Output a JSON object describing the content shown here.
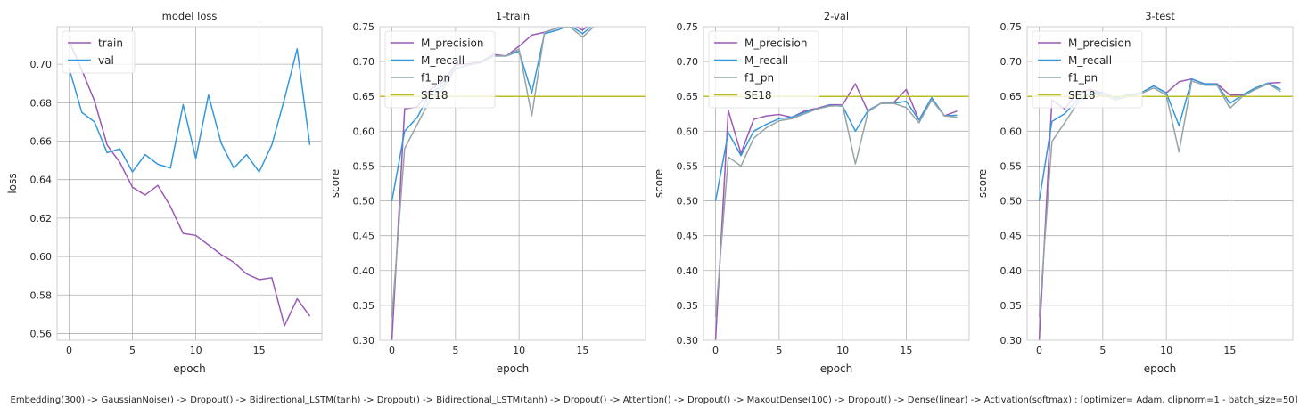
{
  "caption": "Embedding(300) -> GaussianNoise() -> Dropout() -> Bidirectional_LSTM(tanh) -> Dropout() -> Bidirectional_LSTM(tanh) -> Dropout() -> Attention() -> Dropout() -> MaxoutDense(100) -> Dropout() -> Dense(linear) -> Activation(softmax) : [optimizer= Adam, clipnorm=1 - batch_size=50]",
  "colors": {
    "purple": "#9b59b6",
    "blue": "#3498db",
    "gray": "#95a5a6",
    "olive": "#bcbd22",
    "grid": "#b0b0b0",
    "spine": "#cfcfcf"
  },
  "chart_data": [
    {
      "type": "line",
      "title": "model loss",
      "xlabel": "epoch",
      "ylabel": "loss",
      "xlim": [
        -0.95,
        19.95
      ],
      "ylim": [
        0.5565,
        0.7195
      ],
      "xticks": [
        0,
        5,
        10,
        15
      ],
      "yticks": [
        0.56,
        0.58,
        0.6,
        0.62,
        0.64,
        0.66,
        0.68,
        0.7
      ],
      "tick_format": "fixed2",
      "grid": true,
      "legend_position": "upper-left",
      "series": [
        {
          "name": "train",
          "color": "#9b59b6",
          "x": [
            0,
            1,
            2,
            3,
            4,
            5,
            6,
            7,
            8,
            9,
            10,
            11,
            12,
            13,
            14,
            15,
            16,
            17,
            18,
            19
          ],
          "values": [
            0.712,
            0.697,
            0.681,
            0.658,
            0.649,
            0.636,
            0.632,
            0.637,
            0.626,
            0.612,
            0.611,
            0.606,
            0.601,
            0.597,
            0.591,
            0.588,
            0.589,
            0.564,
            0.578,
            0.569
          ]
        },
        {
          "name": "val",
          "color": "#3498db",
          "x": [
            0,
            1,
            2,
            3,
            4,
            5,
            6,
            7,
            8,
            9,
            10,
            11,
            12,
            13,
            14,
            15,
            16,
            17,
            18,
            19
          ],
          "values": [
            0.698,
            0.675,
            0.67,
            0.654,
            0.656,
            0.644,
            0.653,
            0.648,
            0.646,
            0.679,
            0.651,
            0.684,
            0.659,
            0.646,
            0.653,
            0.644,
            0.658,
            0.682,
            0.708,
            0.658
          ]
        }
      ]
    },
    {
      "type": "line",
      "title": "1-train",
      "xlabel": "epoch",
      "ylabel": "score",
      "xlim": [
        -0.95,
        19.95
      ],
      "ylim": [
        0.3,
        0.75
      ],
      "xticks": [
        0,
        5,
        10,
        15
      ],
      "yticks": [
        0.3,
        0.35,
        0.4,
        0.45,
        0.5,
        0.55,
        0.6,
        0.65,
        0.7,
        0.75
      ],
      "tick_format": "fixed2",
      "grid": true,
      "legend_position": "upper-left",
      "series": [
        {
          "name": "M_precision",
          "color": "#9b59b6",
          "x": [
            0,
            1,
            2,
            3,
            4,
            5,
            6,
            7,
            8,
            9,
            10,
            11,
            12,
            13,
            14,
            15,
            16,
            17,
            18,
            19
          ],
          "values": [
            0.3,
            0.632,
            0.635,
            0.66,
            0.67,
            0.695,
            0.697,
            0.7,
            0.71,
            0.708,
            0.722,
            0.738,
            0.742,
            0.748,
            0.755,
            0.745,
            0.76,
            0.762,
            0.765,
            0.77
          ]
        },
        {
          "name": "M_recall",
          "color": "#3498db",
          "x": [
            0,
            1,
            2,
            3,
            4,
            5,
            6,
            7,
            8,
            9,
            10,
            11,
            12,
            13,
            14,
            15,
            16,
            17,
            18,
            19
          ],
          "values": [
            0.5,
            0.6,
            0.62,
            0.655,
            0.665,
            0.69,
            0.695,
            0.698,
            0.708,
            0.708,
            0.715,
            0.655,
            0.74,
            0.745,
            0.752,
            0.74,
            0.755,
            0.758,
            0.762,
            0.77
          ]
        },
        {
          "name": "f1_pn",
          "color": "#95a5a6",
          "x": [
            0,
            1,
            2,
            3,
            4,
            5,
            6,
            7,
            8,
            9,
            10,
            11,
            12,
            13,
            14,
            15,
            16,
            17,
            18,
            19
          ],
          "values": [
            0.333,
            0.575,
            0.61,
            0.645,
            0.66,
            0.69,
            0.695,
            0.698,
            0.708,
            0.708,
            0.718,
            0.622,
            0.742,
            0.748,
            0.75,
            0.735,
            0.752,
            0.755,
            0.76,
            0.768
          ]
        },
        {
          "name": "SE18",
          "color": "#bcbd22",
          "constant": 0.65
        }
      ]
    },
    {
      "type": "line",
      "title": "2-val",
      "xlabel": "epoch",
      "ylabel": "score",
      "xlim": [
        -0.95,
        19.95
      ],
      "ylim": [
        0.3,
        0.75
      ],
      "xticks": [
        0,
        5,
        10,
        15
      ],
      "yticks": [
        0.3,
        0.35,
        0.4,
        0.45,
        0.5,
        0.55,
        0.6,
        0.65,
        0.7,
        0.75
      ],
      "tick_format": "fixed2",
      "grid": true,
      "legend_position": "upper-left",
      "series": [
        {
          "name": "M_precision",
          "color": "#9b59b6",
          "x": [
            0,
            1,
            2,
            3,
            4,
            5,
            6,
            7,
            8,
            9,
            10,
            11,
            12,
            13,
            14,
            15,
            16,
            17,
            18,
            19
          ],
          "values": [
            0.3,
            0.63,
            0.568,
            0.617,
            0.622,
            0.624,
            0.62,
            0.629,
            0.633,
            0.638,
            0.638,
            0.668,
            0.628,
            0.64,
            0.641,
            0.66,
            0.616,
            0.648,
            0.622,
            0.629
          ]
        },
        {
          "name": "M_recall",
          "color": "#3498db",
          "x": [
            0,
            1,
            2,
            3,
            4,
            5,
            6,
            7,
            8,
            9,
            10,
            11,
            12,
            13,
            14,
            15,
            16,
            17,
            18,
            19
          ],
          "values": [
            0.5,
            0.598,
            0.565,
            0.6,
            0.61,
            0.618,
            0.62,
            0.627,
            0.632,
            0.637,
            0.636,
            0.6,
            0.63,
            0.64,
            0.64,
            0.643,
            0.616,
            0.648,
            0.622,
            0.623
          ]
        },
        {
          "name": "f1_pn",
          "color": "#95a5a6",
          "x": [
            0,
            1,
            2,
            3,
            4,
            5,
            6,
            7,
            8,
            9,
            10,
            11,
            12,
            13,
            14,
            15,
            16,
            17,
            18,
            19
          ],
          "values": [
            0.333,
            0.563,
            0.55,
            0.59,
            0.605,
            0.615,
            0.618,
            0.625,
            0.632,
            0.636,
            0.637,
            0.553,
            0.628,
            0.64,
            0.64,
            0.634,
            0.612,
            0.645,
            0.622,
            0.62
          ]
        },
        {
          "name": "SE18",
          "color": "#bcbd22",
          "constant": 0.65
        }
      ]
    },
    {
      "type": "line",
      "title": "3-test",
      "xlabel": "epoch",
      "ylabel": "score",
      "xlim": [
        -0.95,
        19.95
      ],
      "ylim": [
        0.3,
        0.75
      ],
      "xticks": [
        0,
        5,
        10,
        15
      ],
      "yticks": [
        0.3,
        0.35,
        0.4,
        0.45,
        0.5,
        0.55,
        0.6,
        0.65,
        0.7,
        0.75
      ],
      "tick_format": "fixed2",
      "grid": true,
      "legend_position": "upper-left",
      "series": [
        {
          "name": "M_precision",
          "color": "#9b59b6",
          "x": [
            0,
            1,
            2,
            3,
            4,
            5,
            6,
            7,
            8,
            9,
            10,
            11,
            12,
            13,
            14,
            15,
            16,
            17,
            18,
            19
          ],
          "values": [
            0.3,
            0.645,
            0.632,
            0.655,
            0.66,
            0.655,
            0.648,
            0.652,
            0.655,
            0.665,
            0.655,
            0.671,
            0.675,
            0.668,
            0.668,
            0.652,
            0.652,
            0.662,
            0.669,
            0.67
          ]
        },
        {
          "name": "M_recall",
          "color": "#3498db",
          "x": [
            0,
            1,
            2,
            3,
            4,
            5,
            6,
            7,
            8,
            9,
            10,
            11,
            12,
            13,
            14,
            15,
            16,
            17,
            18,
            19
          ],
          "values": [
            0.5,
            0.614,
            0.625,
            0.645,
            0.655,
            0.655,
            0.648,
            0.652,
            0.655,
            0.665,
            0.655,
            0.608,
            0.675,
            0.668,
            0.667,
            0.64,
            0.652,
            0.662,
            0.669,
            0.66
          ]
        },
        {
          "name": "f1_pn",
          "color": "#95a5a6",
          "x": [
            0,
            1,
            2,
            3,
            4,
            5,
            6,
            7,
            8,
            9,
            10,
            11,
            12,
            13,
            14,
            15,
            16,
            17,
            18,
            19
          ],
          "values": [
            0.333,
            0.585,
            0.612,
            0.64,
            0.652,
            0.652,
            0.645,
            0.65,
            0.654,
            0.662,
            0.652,
            0.57,
            0.672,
            0.666,
            0.666,
            0.633,
            0.65,
            0.66,
            0.668,
            0.657
          ]
        },
        {
          "name": "SE18",
          "color": "#bcbd22",
          "constant": 0.65
        }
      ]
    }
  ]
}
